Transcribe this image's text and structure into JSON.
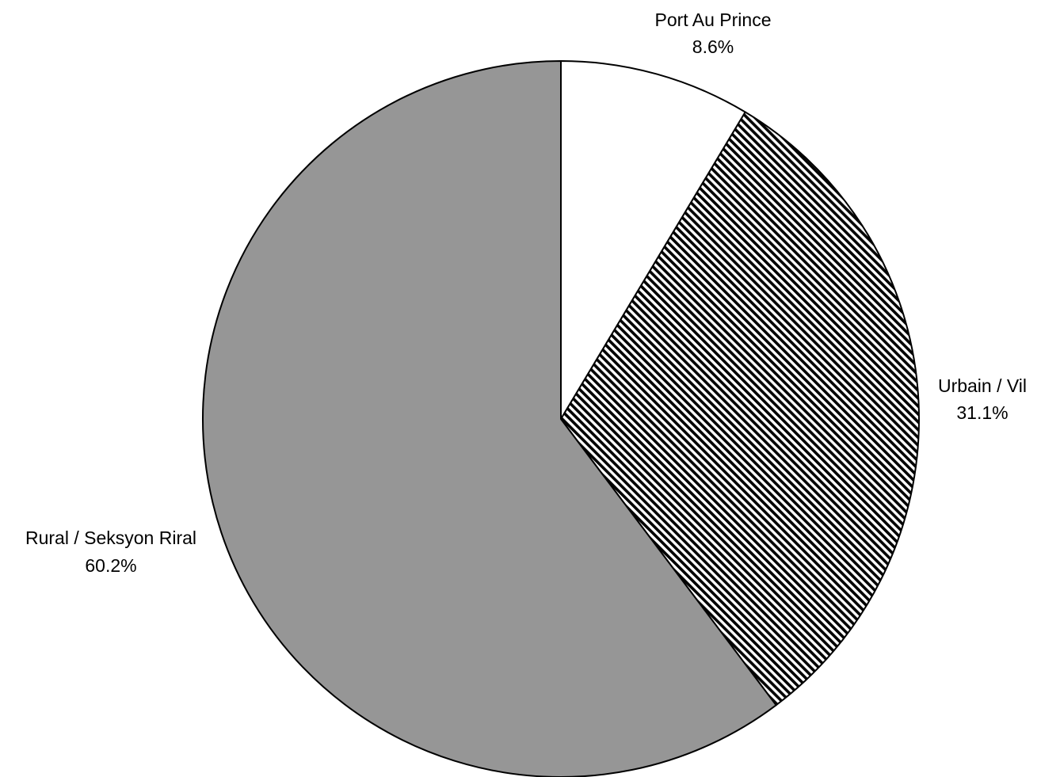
{
  "chart_data": {
    "type": "pie",
    "slices": [
      {
        "label": "Port Au Prince",
        "value": 8.6,
        "value_label": "8.6%",
        "fill": "#ffffff",
        "pattern": "none"
      },
      {
        "label": "Urbain / Vil",
        "value": 31.1,
        "value_label": "31.1%",
        "fill": "#ffffff",
        "pattern": "diagonal-stripes"
      },
      {
        "label": "Rural / Seksyon Riral",
        "value": 60.2,
        "value_label": "60.2%",
        "fill": "#969696",
        "pattern": "none"
      }
    ],
    "start": "12 o'clock",
    "direction": "clockwise",
    "legend": "none",
    "colors": {
      "outline": "#000000",
      "stripe": "#000000",
      "rural": "#969696"
    }
  }
}
